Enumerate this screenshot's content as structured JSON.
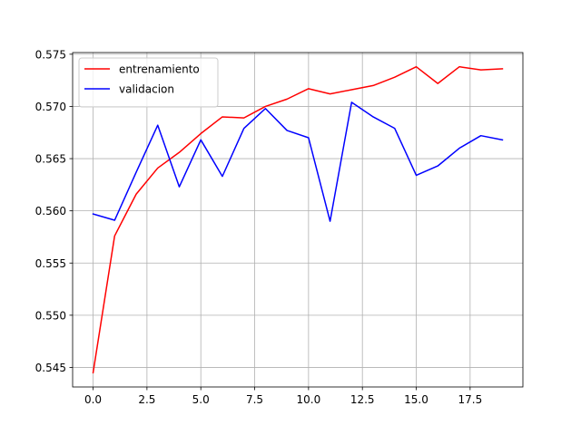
{
  "chart_data": {
    "type": "line",
    "title": "",
    "xlabel": "",
    "ylabel": "",
    "grid": true,
    "legend_position": "top-left",
    "xlim": [
      -0.95,
      19.95
    ],
    "ylim": [
      0.54313,
      0.57516
    ],
    "x_ticks": [
      0,
      2.5,
      5,
      7.5,
      10,
      12.5,
      15,
      17.5
    ],
    "x_tick_labels": [
      "0.0",
      "2.5",
      "5.0",
      "7.5",
      "10.0",
      "12.5",
      "15.0",
      "17.5"
    ],
    "y_ticks": [
      0.545,
      0.55,
      0.555,
      0.56,
      0.565,
      0.57,
      0.575
    ],
    "y_tick_labels": [
      "0.545",
      "0.550",
      "0.555",
      "0.560",
      "0.565",
      "0.570",
      "0.575"
    ],
    "x": [
      0,
      1,
      2,
      3,
      4,
      5,
      6,
      7,
      8,
      9,
      10,
      11,
      12,
      13,
      14,
      15,
      16,
      17,
      18,
      19
    ],
    "series": [
      {
        "name": "entrenamiento",
        "color": "#ff0000",
        "values": [
          0.5445,
          0.5576,
          0.5616,
          0.5641,
          0.5656,
          0.5674,
          0.569,
          0.5689,
          0.57,
          0.5707,
          0.5717,
          0.5712,
          0.5716,
          0.572,
          0.5728,
          0.5738,
          0.5722,
          0.5738,
          0.5735,
          0.5736
        ]
      },
      {
        "name": "validacion",
        "color": "#0000ff",
        "values": [
          0.5597,
          0.5591,
          0.5637,
          0.5682,
          0.5623,
          0.5668,
          0.5633,
          0.5679,
          0.5698,
          0.5677,
          0.567,
          0.559,
          0.5704,
          0.569,
          0.5679,
          0.5634,
          0.5643,
          0.566,
          0.5672,
          0.5668
        ]
      }
    ]
  }
}
